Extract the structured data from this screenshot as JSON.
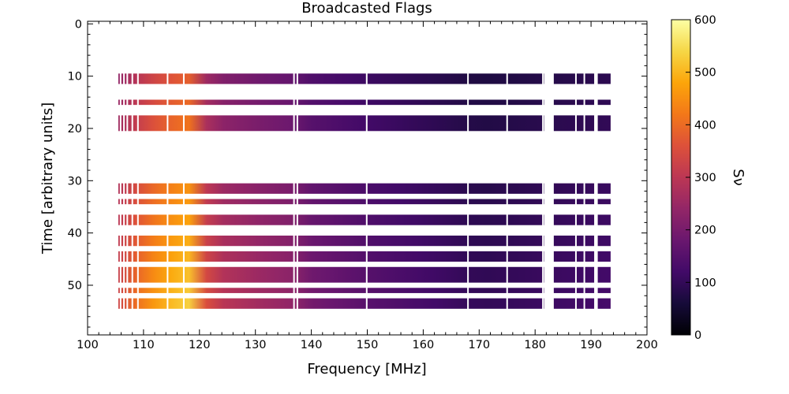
{
  "chart_data": {
    "type": "heatmap",
    "title": "Broadcasted Flags",
    "xlabel": "Frequency [MHz]",
    "ylabel": "Time [arbitrary units]",
    "xlim": [
      100,
      200
    ],
    "ylim": [
      59.5,
      -0.5
    ],
    "x_ticks": [
      100,
      110,
      120,
      130,
      140,
      150,
      160,
      170,
      180,
      190,
      200
    ],
    "y_ticks": [
      0,
      10,
      20,
      30,
      40,
      50
    ],
    "colorbar": {
      "label": "S_ν",
      "label_display": "Sν",
      "colormap": "inferno",
      "range": [
        0,
        600
      ],
      "ticks": [
        0,
        100,
        200,
        300,
        400,
        500,
        600
      ]
    },
    "data_freq_range_mhz": [
      105.5,
      193.5
    ],
    "unflagged_time_rows": [
      [
        9.5,
        11.5
      ],
      [
        14.5,
        15.5
      ],
      [
        17.5,
        20.5
      ],
      [
        30.5,
        32.5
      ],
      [
        33.5,
        34.5
      ],
      [
        36.5,
        38.5
      ],
      [
        40.5,
        42.5
      ],
      [
        43.5,
        45.5
      ],
      [
        46.5,
        49.5
      ],
      [
        50.5,
        51.5
      ],
      [
        52.5,
        54.5
      ]
    ],
    "flagged_frequency_lines_mhz": [
      105.9,
      106.5,
      107.1,
      108.0,
      109.0,
      114.3,
      117.2,
      136.9,
      137.5,
      149.9,
      168.0,
      175.0,
      181.4,
      183.2,
      187.3,
      188.8,
      190.7
    ],
    "flagged_frequency_gaps_mhz": [
      [
        181.6,
        183.1
      ],
      [
        190.8,
        191.2
      ]
    ],
    "spectrum_profile_mhz_value": [
      [
        105.5,
        290
      ],
      [
        110,
        380
      ],
      [
        114,
        430
      ],
      [
        118,
        470
      ],
      [
        120,
        330
      ],
      [
        124,
        260
      ],
      [
        130,
        230
      ],
      [
        137,
        205
      ],
      [
        140,
        170
      ],
      [
        150,
        135
      ],
      [
        160,
        110
      ],
      [
        170,
        85
      ],
      [
        180,
        95
      ],
      [
        193.5,
        110
      ]
    ]
  }
}
